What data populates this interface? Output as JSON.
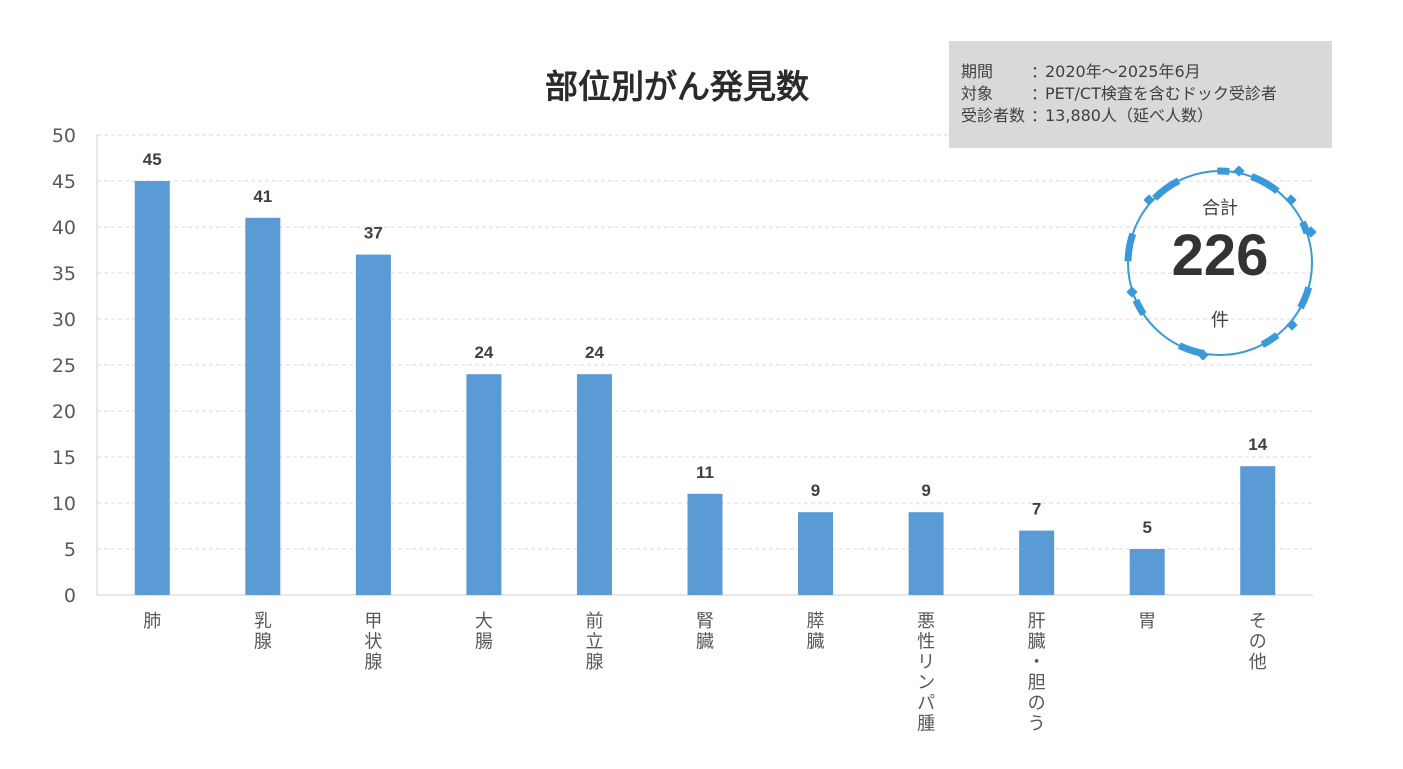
{
  "title": "部位別がん発見数",
  "info": {
    "rows": [
      {
        "key": "期間",
        "sep": "：",
        "value": "2020年～2025年6月"
      },
      {
        "key": "対象",
        "sep": "：",
        "value": "PET/CT検査を含むドック受診者"
      },
      {
        "key": "受診者数",
        "sep": "：",
        "value": "13,880人（延べ人数）"
      }
    ]
  },
  "total": {
    "caption": "合計",
    "value": "226",
    "unit": "件"
  },
  "colors": {
    "bar": "#5b9bd5",
    "badge_ring": "#3a9ad9",
    "grid": "#d9d9d9",
    "info_bg": "#d9d9d9"
  },
  "chart_data": {
    "type": "bar",
    "title": "部位別がん発見数",
    "categories": [
      "肺",
      "乳腺",
      "甲状腺",
      "大腸",
      "前立腺",
      "腎臓",
      "膵臓",
      "悪性リンパ腫",
      "肝臓・胆のう",
      "胃",
      "その他"
    ],
    "values": [
      45,
      41,
      37,
      24,
      24,
      11,
      9,
      9,
      7,
      5,
      14
    ],
    "ylim": [
      0,
      50
    ],
    "yticks": [
      0,
      5,
      10,
      15,
      20,
      25,
      30,
      35,
      40,
      45,
      50
    ],
    "xlabel": "",
    "ylabel": "",
    "grid": true,
    "label_orientation": "vertical"
  }
}
